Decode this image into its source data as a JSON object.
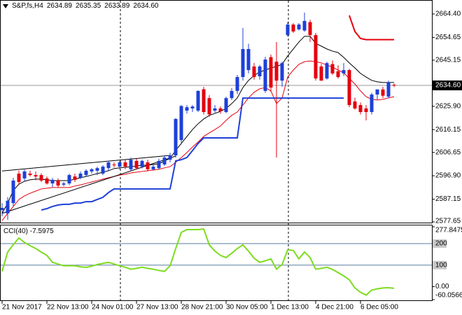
{
  "chart_data": {
    "type": "candlestick",
    "symbol": "S&P,fs,H4",
    "header_ohlc": [
      2634.89,
      2635.35,
      2633.89,
      {
        "value": 2634.6,
        "label": "2634.60"
      }
    ],
    "categories": [
      "21 Nov 2017",
      null,
      null,
      null,
      null,
      null,
      null,
      null,
      "22 Nov 13:00",
      null,
      null,
      null,
      null,
      null,
      null,
      null,
      "24 Nov 01:00",
      null,
      null,
      null,
      null,
      null,
      null,
      null,
      "27 Nov 13:00",
      null,
      null,
      null,
      null,
      null,
      null,
      null,
      "28 Nov 21:00",
      null,
      null,
      null,
      null,
      null,
      null,
      null,
      "30 Nov 05:00",
      null,
      null,
      null,
      null,
      null,
      null,
      null,
      "1 Dec 13:00",
      null,
      null,
      null,
      null,
      null,
      null,
      null,
      "4 Dec 21:00",
      null,
      null,
      null,
      null,
      null,
      null,
      null,
      "6 Dec 05:00",
      null,
      null,
      null,
      null,
      null,
      null
    ],
    "open": [
      2582.6,
      2581.2,
      2585.5,
      2597.8,
      2595.8,
      2597.8,
      2597.2,
      2597.2,
      2595.8,
      2593.7,
      2594.9,
      2593.2,
      2593.7,
      2596.6,
      2596,
      2597.2,
      2598.7,
      2599,
      2597.8,
      2600.1,
      2601.6,
      2600.7,
      2602.5,
      2599.6,
      2603.1,
      2600.7,
      2602.5,
      2599.6,
      2600.1,
      2601.6,
      2603.6,
      2605.4,
      2611.8,
      2624.1,
      2625,
      2624.1,
      2633,
      2629.3,
      2624.1,
      2625,
      2623.5,
      2629.3,
      2632.3,
      2638.1,
      2641,
      2642.5,
      2638.4,
      2632.3,
      2646.4,
      2644.5,
      2636.6,
      2655.6,
      2660,
      2658,
      2657.5,
      2661,
      2655.6,
      2642.5,
      2637.5,
      2643.5,
      2640.5,
      2639.6,
      2641,
      2627.9,
      2626.4,
      2625,
      2623.5,
      2630.8,
      2632.9,
      2629.9,
      2634.89
    ],
    "high": [
      2585.5,
      2588,
      2596,
      2599,
      2599.5,
      2599,
      2598.7,
      2598,
      2596.6,
      2596,
      2595.8,
      2594.3,
      2597.8,
      2597.8,
      2598.7,
      2599.6,
      2600.1,
      2600.7,
      2601.3,
      2603.1,
      2602.5,
      2603.1,
      2603.6,
      2604.5,
      2604,
      2603.6,
      2603.6,
      2601.6,
      2604,
      2605.4,
      2606.5,
      2621,
      2626.4,
      2626.4,
      2626.4,
      2632.6,
      2634,
      2630.5,
      2626.4,
      2625.8,
      2629.9,
      2633.5,
      2639,
      2658.6,
      2652,
      2644,
      2643.2,
      2646.5,
      2647.5,
      2652.7,
      2644.5,
      2661,
      2660.6,
      2660.6,
      2665,
      2662,
      2656.5,
      2643.5,
      2644.5,
      2645,
      2643,
      2643.9,
      2641.5,
      2629.5,
      2627.5,
      2626.4,
      2631.5,
      2633,
      2634,
      2636.6,
      2635.35
    ],
    "low": [
      2580,
      2578.5,
      2584,
      2593,
      2594.5,
      2596.6,
      2595,
      2594.3,
      2593.2,
      2592.2,
      2592.2,
      2592.5,
      2593,
      2594.3,
      2595.5,
      2596.6,
      2597.8,
      2597.2,
      2597.2,
      2599,
      2600.4,
      2599.6,
      2599.6,
      2599,
      2599.6,
      2600,
      2598.7,
      2599,
      2599.6,
      2601,
      2602.5,
      2604.5,
      2610,
      2622.8,
      2623.5,
      2623.5,
      2622.5,
      2621.5,
      2623.2,
      2622.8,
      2623,
      2628.5,
      2631,
      2636.6,
      2639.6,
      2637,
      2637,
      2631.5,
      2632,
      2604.5,
      2634,
      2655,
      2656.5,
      2657.5,
      2657,
      2652.7,
      2636.6,
      2636.5,
      2637,
      2639,
      2637.5,
      2638.5,
      2625.5,
      2624.5,
      2622.5,
      2620,
      2622.5,
      2628.5,
      2629.3,
      2629.3,
      2633.89
    ],
    "close": [
      2583.5,
      2586.5,
      2594.9,
      2594.3,
      2598.7,
      2597.2,
      2596.6,
      2594.9,
      2593.7,
      2595.2,
      2592.8,
      2593.7,
      2597.2,
      2595.2,
      2597.8,
      2599,
      2599.6,
      2600.1,
      2600.7,
      2602.5,
      2601.3,
      2602.5,
      2600.7,
      2603.6,
      2600.1,
      2603.1,
      2599.6,
      2600.7,
      2603.1,
      2604.5,
      2605.4,
      2620.6,
      2626,
      2625.5,
      2625.8,
      2632.3,
      2623.5,
      2622.5,
      2625,
      2623.8,
      2629.3,
      2632.3,
      2638.1,
      2649.8,
      2649.8,
      2638.1,
      2642.5,
      2645.4,
      2633.7,
      2636.6,
      2643.9,
      2660,
      2657.1,
      2660,
      2661.5,
      2655.6,
      2637.5,
      2636.6,
      2643.9,
      2639.6,
      2638.1,
      2641,
      2626.4,
      2625,
      2623.5,
      2623.5,
      2630.8,
      2632.9,
      2630.3,
      2635.8,
      2634.6
    ],
    "up_color": "#1e40d8",
    "down_color": "#e4000e",
    "ylim": [
      2577.36,
      2670.24
    ],
    "yticks": [
      {
        "value": 2664.4,
        "label": "2664.40"
      },
      2654.65,
      2645.15,
      {
        "value": 2625.9,
        "label": "2625.90"
      },
      2616.15,
      2606.65,
      {
        "value": 2596.9,
        "label": "2596.90"
      },
      2587.15,
      2577.65
    ],
    "current_price": {
      "value": 2634.6,
      "label": "2634.60"
    },
    "lines": [
      {
        "color": "#000000",
        "width": 1,
        "values": [
          2581.2,
          2585.5,
          2590.8,
          2593.4,
          2594.6,
          2595.2,
          2595.5,
          2595.5,
          2595.2,
          2594.9,
          2594.9,
          2594.9,
          2594.9,
          2595.5,
          2596.1,
          2596.6,
          2597.2,
          2597.8,
          2598.4,
          2599,
          2599.9,
          2600.2,
          2600.4,
          2600.7,
          2601,
          2601.3,
          2601.3,
          2601.6,
          2601.9,
          2603.1,
          2604.2,
          2607.5,
          2610.4,
          2613.3,
          2616.2,
          2618.6,
          2620.6,
          2622.1,
          2622.9,
          2623.8,
          2625,
          2627,
          2629.4,
          2633.7,
          2636.7,
          2638.7,
          2640.2,
          2641,
          2641.9,
          2642.5,
          2643.4,
          2646.9,
          2649.8,
          2652.7,
          2655.1,
          2655.1,
          2652.1,
          2651,
          2649.8,
          2648.9,
          2648.3,
          2646.3,
          2644,
          2641.9,
          2639.6,
          2638.1,
          2636.7,
          2636.1,
          2635.8,
          2635.8,
          2635.8
        ]
      },
      {
        "color": "#e4000e",
        "width": 1,
        "values": [
          2578.2,
          2581.2,
          2584.1,
          2587,
          2588.5,
          2589.6,
          2590.5,
          2591.4,
          2591.7,
          2592,
          2592,
          2592,
          2592,
          2592.6,
          2593.1,
          2593.7,
          2594.3,
          2594.9,
          2595.5,
          2596.1,
          2596.6,
          2597.2,
          2597.5,
          2598.1,
          2598.4,
          2598.7,
          2599,
          2599.3,
          2599.6,
          2600.2,
          2600.7,
          2602.5,
          2604.5,
          2606.6,
          2608.9,
          2611,
          2613.3,
          2614.8,
          2616.2,
          2617.7,
          2620,
          2622.1,
          2623.5,
          2626.4,
          2629.4,
          2631.7,
          2633.2,
          2633.7,
          2632.3,
          2627,
          2629.4,
          2638.1,
          2641,
          2643.4,
          2644.5,
          2644.8,
          2644.5,
          2644,
          2643.1,
          2642.2,
          2641,
          2639.9,
          2637.5,
          2635.2,
          2632.3,
          2629.9,
          2628.8,
          2628.5,
          2628.8,
          2629.4,
          2629.9
        ]
      },
      {
        "color": "#1e40d8",
        "width": 2,
        "values": [
          null,
          null,
          null,
          null,
          null,
          null,
          null,
          2582.6,
          2583.2,
          2584.1,
          2584.7,
          2585,
          2585,
          2585.5,
          2585.5,
          2586.1,
          2586.1,
          2587,
          2587.9,
          2589.9,
          2591.4,
          2591.4,
          2591.4,
          2591.4,
          2591.4,
          2591.4,
          2591.4,
          2591.4,
          2591.4,
          2591.4,
          2591.4,
          2603.1,
          2603.6,
          2604.5,
          2607.4,
          2610.4,
          2612.7,
          2612.7,
          2612.7,
          2612.7,
          2612.7,
          2612.7,
          2612.7,
          2629.3,
          2629.3,
          2629.3,
          2629.3,
          2629.3,
          2629.3,
          2629.3,
          2629.3,
          2629.3,
          2629.3,
          2629.3,
          2629.3,
          2629.3,
          2629.3,
          2629.3,
          2629.3,
          2629.3,
          2629.3,
          2629.3,
          null,
          null,
          null,
          null,
          null,
          null,
          null,
          null,
          null
        ]
      },
      {
        "color": "#e4000e",
        "width": 2,
        "values": [
          null,
          null,
          null,
          null,
          null,
          null,
          null,
          null,
          null,
          null,
          null,
          null,
          null,
          null,
          null,
          null,
          null,
          null,
          null,
          null,
          null,
          null,
          null,
          null,
          null,
          null,
          null,
          null,
          null,
          null,
          null,
          null,
          null,
          null,
          null,
          null,
          null,
          null,
          null,
          null,
          null,
          null,
          null,
          null,
          null,
          null,
          null,
          null,
          null,
          null,
          null,
          null,
          null,
          null,
          null,
          null,
          null,
          null,
          null,
          null,
          null,
          null,
          2663.8,
          2657.1,
          2654.2,
          2653.7,
          2653.7,
          2653.7,
          2653.7,
          2653.7,
          2653.7
        ]
      }
    ],
    "trendlines": [
      {
        "color": "#000000",
        "x": [
          0,
          30
        ],
        "values": [
          2598.9,
          2605.4
        ]
      },
      {
        "color": "#000000",
        "x": [
          0,
          31
        ],
        "values": [
          2581.2,
          2605.1
        ]
      }
    ],
    "indicator": {
      "type": "line",
      "title": "CCI(40) -7.5975",
      "color": "#7ddc1f",
      "values": [
        71,
        161,
        195,
        226,
        205,
        190,
        177,
        160,
        145,
        113,
        105,
        97,
        97,
        97,
        92,
        90,
        95,
        103,
        108,
        113,
        105,
        97,
        90,
        81,
        85,
        90,
        85,
        81,
        75,
        71,
        97,
        177,
        252,
        265,
        265,
        265,
        268,
        194,
        165,
        145,
        135,
        155,
        177,
        194,
        165,
        132,
        113,
        120,
        129,
        81,
        103,
        171,
        168,
        129,
        161,
        135,
        81,
        85,
        90,
        80,
        65,
        50,
        32,
        -6,
        -26,
        -39,
        -16,
        -10,
        -6,
        -5,
        -7.5975
      ],
      "ylim": [
        -60.0566,
        277.8475
      ],
      "yticks": [
        277.8475,
        200,
        100,
        {
          "value": 0,
          "label": "0.00"
        },
        -60.0566
      ],
      "levels": [
        200,
        100
      ],
      "level_color": "#5a7da0"
    }
  }
}
